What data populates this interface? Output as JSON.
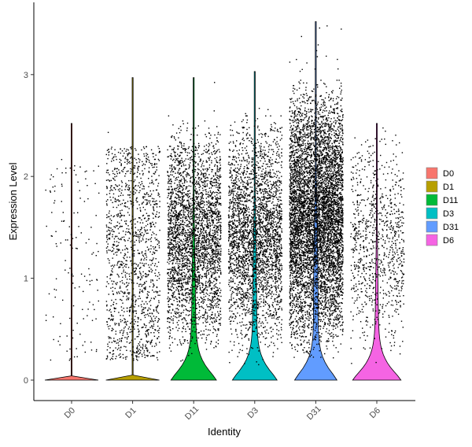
{
  "chart_data": {
    "type": "violin",
    "title": "",
    "xlabel": "Identity",
    "ylabel": "Expression Level",
    "ylim": [
      -0.2,
      3.6
    ],
    "yticks": [
      0,
      1,
      2,
      3
    ],
    "grid": false,
    "legend_position": "right",
    "series": [
      {
        "name": "D0",
        "color": "#F8766D",
        "n_points": 140,
        "max": 2.52,
        "pos_frac": 0.06,
        "median": 0.0,
        "upper_band": 2.2
      },
      {
        "name": "D1",
        "color": "#B79F00",
        "n_points": 1350,
        "max": 2.97,
        "pos_frac": 0.42,
        "median": 0.0,
        "upper_band": 2.3
      },
      {
        "name": "D11",
        "color": "#00BA38",
        "n_points": 3100,
        "max": 2.97,
        "pos_frac": 0.82,
        "median": 0.45,
        "upper_band": 2.4
      },
      {
        "name": "D3",
        "color": "#00BFC4",
        "n_points": 3000,
        "max": 3.03,
        "pos_frac": 0.85,
        "median": 0.55,
        "upper_band": 2.45
      },
      {
        "name": "D31",
        "color": "#619CFF",
        "n_points": 6500,
        "max": 3.52,
        "pos_frac": 0.93,
        "median": 0.75,
        "upper_band": 2.8
      },
      {
        "name": "D6",
        "color": "#F564E3",
        "n_points": 900,
        "max": 2.52,
        "pos_frac": 0.7,
        "median": 0.25,
        "upper_band": 2.3
      }
    ]
  }
}
